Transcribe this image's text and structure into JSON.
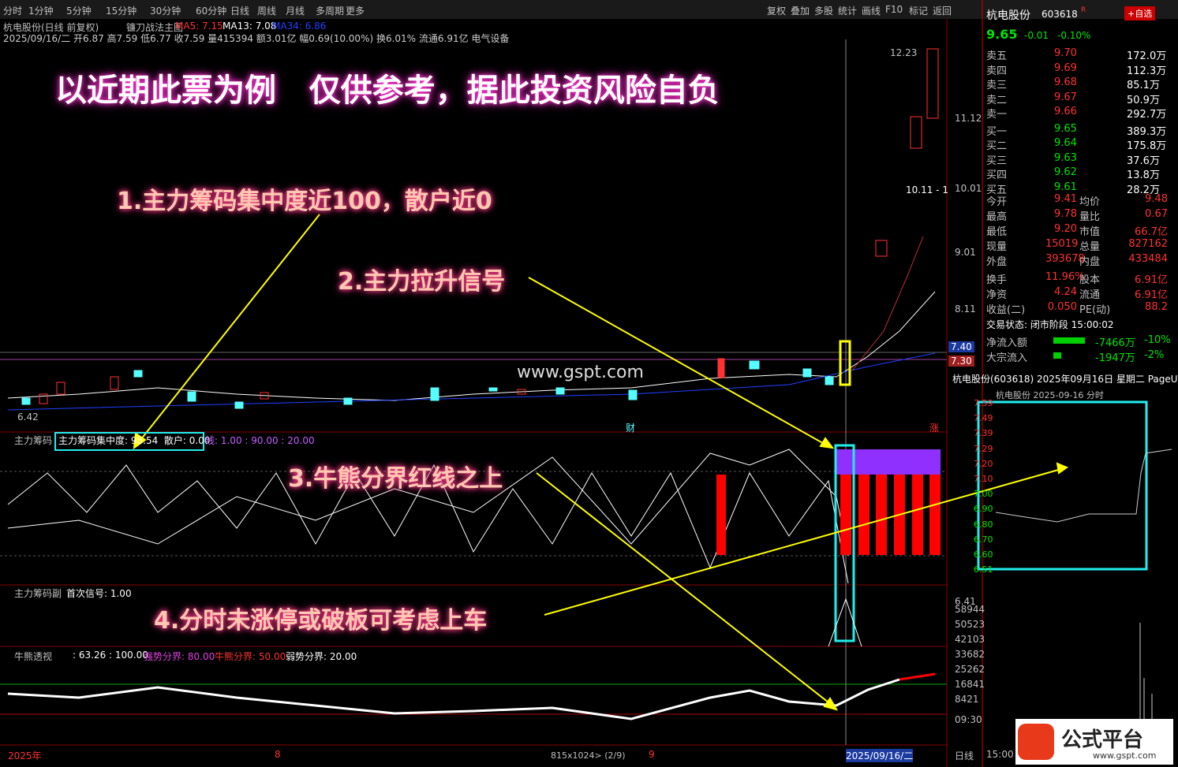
{
  "toolbar": {
    "tabs": [
      "分时",
      "1分钟",
      "5分钟",
      "15分钟",
      "30分钟",
      "60分钟",
      "日线",
      "周线",
      "月线",
      "多周期",
      "更多"
    ],
    "tools": [
      "复权",
      "叠加",
      "多股",
      "统计",
      "画线",
      "F10",
      "标记",
      "返回"
    ]
  },
  "header": {
    "name": "杭电股份(日线 前复权)",
    "formula": "镰刀战法主图",
    "ma5": "MA5: 7.15",
    "ma13": "MA13: 7.08",
    "ma34": "MA34: 6.86",
    "quote": "2025/09/16/二 开6.87 高7.59 低6.77 收7.59 量415394 额3.01亿 幅0.69(10.00%) 换6.01% 流通6.91亿 电气设备"
  },
  "annotations": {
    "title": "以近期此票为例   仅供参考，据此投资风险自负",
    "note1": "1.主力筹码集中度近100，散户近0",
    "note2": "2.主力拉升信号",
    "note3": "3.牛熊分界红线之上",
    "note4": "4.分时未涨停或破板可考虑上车",
    "watermark": "www.gspt.com"
  },
  "price_axis": {
    "labels": [
      "12.23",
      "11.12",
      "10.01",
      "9.01",
      "8.11",
      "7.40",
      "7.30"
    ],
    "low": "6.42",
    "range": "10.11 - 1",
    "mark_cai": "财",
    "mark_zhang": "涨"
  },
  "panels": {
    "p1_name": "主力筹码",
    "p1_values": "主力筹码集中度: 98.54  散户: 0.00",
    "p1_lines": "线: 1.00 : 90.00 : 20.00",
    "p2_name": "主力筹码副",
    "p2_values": "首次信号: 1.00",
    "p3_name": "牛熊透视",
    "p3_values": ": 63.26 : 100.00",
    "p3_strong": "强势分界: 80.00",
    "p3_mid": "牛熊分界: 50.00",
    "p3_weak": "弱势分界: 20.00"
  },
  "right_axis": [
    "6.41",
    "58944",
    "50523",
    "42103",
    "33682",
    "25262",
    "16841",
    "8421",
    "09:30"
  ],
  "footer": {
    "year": "2025年",
    "aug": "8",
    "size": "815x1024> (2/9)",
    "sep": "9",
    "date": "2025/09/16/二",
    "period": "日线",
    "time": "15:00"
  },
  "quote_panel": {
    "name": "杭电股份",
    "code": "603618",
    "flag": "R",
    "button": "+自选",
    "price": "9.65",
    "change": "-0.01",
    "pct": "-0.10%",
    "book": [
      [
        "卖五",
        "9.70",
        "172.0万"
      ],
      [
        "卖四",
        "9.69",
        "112.3万"
      ],
      [
        "卖三",
        "9.68",
        "85.1万"
      ],
      [
        "卖二",
        "9.67",
        "50.9万"
      ],
      [
        "卖一",
        "9.66",
        "292.7万"
      ],
      [
        "买一",
        "9.65",
        "389.3万"
      ],
      [
        "买二",
        "9.64",
        "175.8万"
      ],
      [
        "买三",
        "9.63",
        "37.6万"
      ],
      [
        "买四",
        "9.62",
        "13.8万"
      ],
      [
        "买五",
        "9.61",
        "28.2万"
      ]
    ],
    "stats": [
      [
        "今开",
        "9.41",
        "均价",
        "9.48"
      ],
      [
        "最高",
        "9.78",
        "量比",
        "0.67"
      ],
      [
        "最低",
        "9.20",
        "市值",
        "66.7亿"
      ],
      [
        "现量",
        "15019",
        "总量",
        "827162"
      ],
      [
        "外盘",
        "393678",
        "内盘",
        "433484"
      ],
      [
        "换手",
        "11.96%",
        "股本",
        "6.91亿"
      ],
      [
        "净资",
        "4.24",
        "流通",
        "6.91亿"
      ],
      [
        "收益(二)",
        "0.050",
        "PE(动)",
        "88.2"
      ]
    ],
    "status": "交易状态: 闭市阶段 15:00:02",
    "flows": [
      [
        "净流入额",
        "-7466万",
        "-10%"
      ],
      [
        "大宗流入",
        "-1947万",
        "-2%"
      ]
    ]
  },
  "mini_chart": {
    "header": "杭电股份(603618) 2025年09月16日 星期二 PageUp",
    "title": "杭电股份 2025-09-16 分时",
    "yticks": [
      "7.59",
      "7.49",
      "7.39",
      "7.29",
      "7.20",
      "7.10",
      "7.00",
      "6.90",
      "6.80",
      "6.70",
      "6.60",
      "6.51"
    ]
  },
  "logo": {
    "name": "公式平台",
    "url": "www.gspt.com"
  }
}
